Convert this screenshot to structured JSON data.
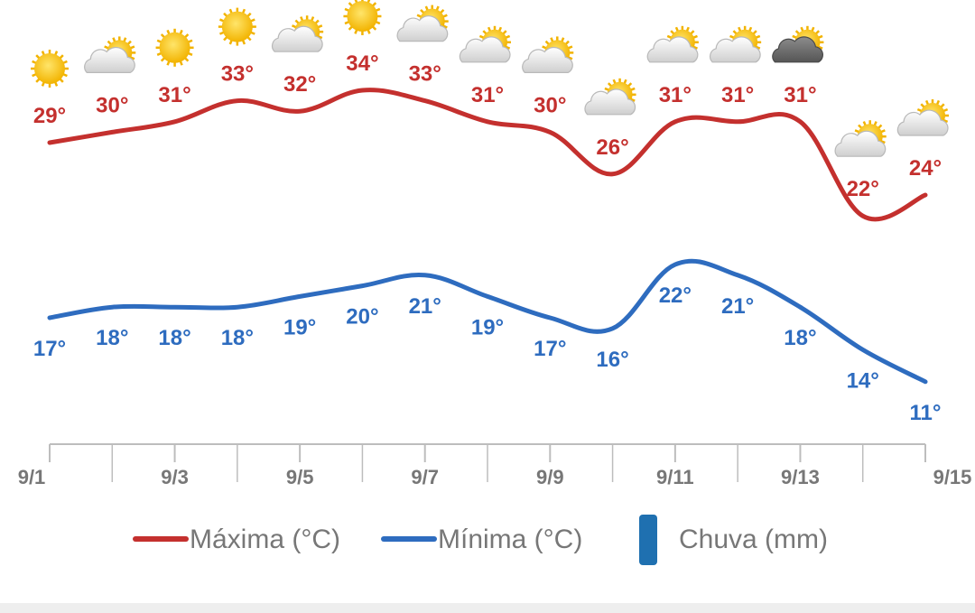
{
  "colors": {
    "max": "#c4302e",
    "min": "#2e6cbf",
    "rain": "#1f70b0",
    "axis": "#bdbdbd",
    "tick_text": "#777777"
  },
  "chart_data": {
    "type": "line",
    "categories": [
      "9/1",
      "9/2",
      "9/3",
      "9/4",
      "9/5",
      "9/6",
      "9/7",
      "9/8",
      "9/9",
      "9/10",
      "9/11",
      "9/12",
      "9/13",
      "9/14",
      "9/15"
    ],
    "x_tick_labels": [
      "9/1",
      "9/3",
      "9/5",
      "9/7",
      "9/9",
      "9/11",
      "9/13",
      "9/15"
    ],
    "series": [
      {
        "key": "max",
        "name": "Máxima (°C)",
        "values": [
          29,
          30,
          31,
          33,
          32,
          34,
          33,
          31,
          30,
          26,
          31,
          31,
          31,
          22,
          24
        ]
      },
      {
        "key": "min",
        "name": "Mínima (°C)",
        "values": [
          17,
          18,
          18,
          18,
          19,
          20,
          21,
          19,
          17,
          16,
          22,
          21,
          18,
          14,
          11
        ]
      }
    ],
    "point_labels": {
      "max": [
        "29°",
        "30°",
        "31°",
        "33°",
        "32°",
        "34°",
        "33°",
        "31°",
        "30°",
        "26°",
        "31°",
        "31°",
        "31°",
        "22°",
        "24°"
      ],
      "min": [
        "17°",
        "18°",
        "18°",
        "18°",
        "19°",
        "20°",
        "21°",
        "19°",
        "17°",
        "16°",
        "22°",
        "21°",
        "18°",
        "14°",
        "11°"
      ]
    },
    "weather_icons": [
      "sun-icon",
      "partly-cloudy-icon",
      "sun-icon",
      "sun-icon",
      "partly-cloudy-icon",
      "sun-icon",
      "partly-cloudy-icon",
      "partly-cloudy-icon",
      "partly-cloudy-icon",
      "partly-cloudy-icon",
      "partly-cloudy-icon",
      "partly-cloudy-icon",
      "dark-cloud-icon",
      "partly-cloudy-icon",
      "partly-cloudy-icon"
    ],
    "rain": {
      "name": "Chuva (mm)",
      "values": []
    },
    "legend": {
      "position": "bottom",
      "items": [
        {
          "key": "max",
          "label": "Máxima (°C)"
        },
        {
          "key": "min",
          "label": "Mínima (°C)"
        },
        {
          "key": "rain",
          "label": "Chuva (mm)"
        }
      ]
    },
    "grid": false
  }
}
